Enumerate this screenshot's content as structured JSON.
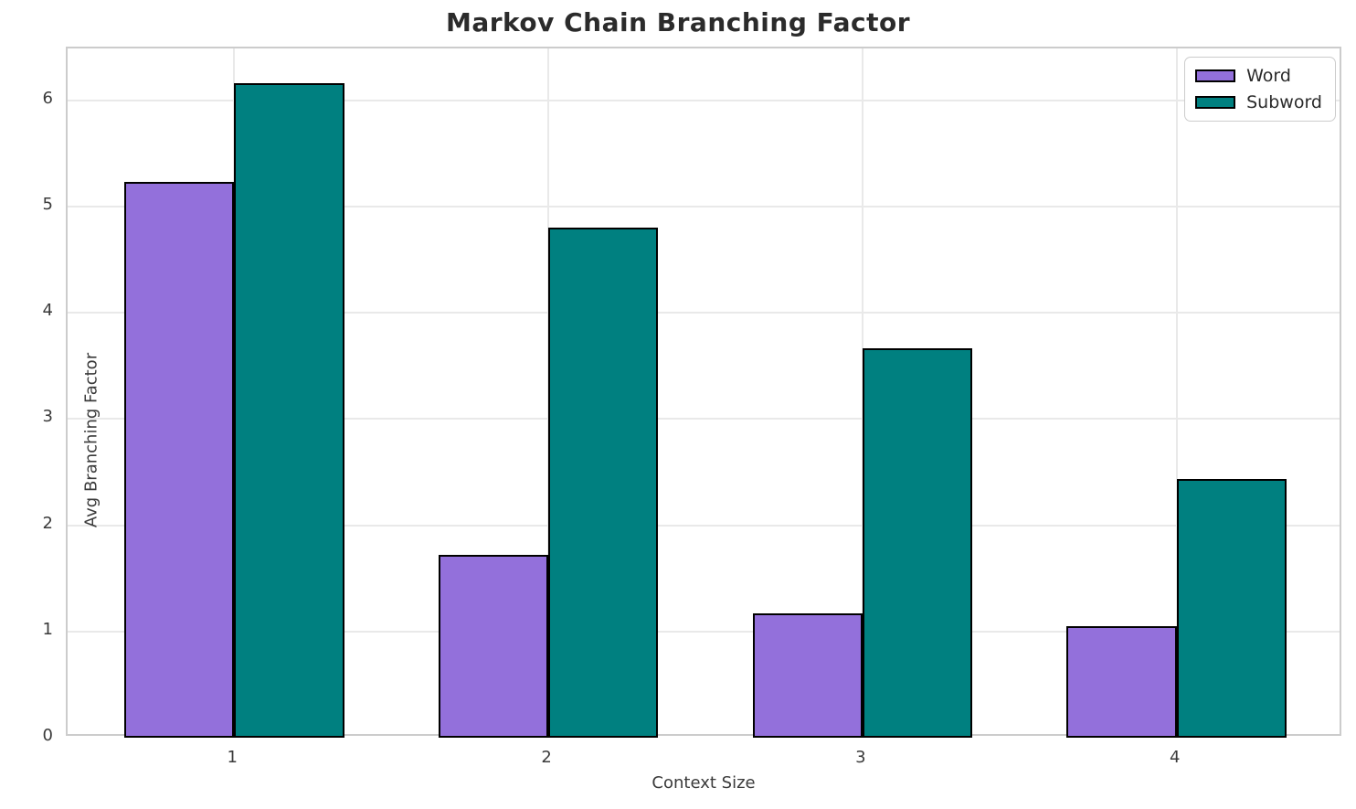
{
  "chart_data": {
    "type": "bar",
    "title": "Markov Chain Branching Factor",
    "xlabel": "Context Size",
    "ylabel": "Avg Branching Factor",
    "categories": [
      "1",
      "2",
      "3",
      "4"
    ],
    "series": [
      {
        "name": "Word",
        "color": "#9370DB",
        "values": [
          5.23,
          1.72,
          1.17,
          1.05
        ]
      },
      {
        "name": "Subword",
        "color": "#008080",
        "values": [
          6.16,
          4.8,
          3.67,
          2.44
        ]
      }
    ],
    "ylim": [
      0,
      6.49
    ],
    "yticks": [
      0,
      1,
      2,
      3,
      4,
      5,
      6
    ],
    "xlim": [
      -0.53,
      3.53
    ],
    "bar_width_units": 0.35,
    "bar_edge_color": "#000000",
    "grid": true,
    "gridline_color": "#e9e9e9",
    "spine_color": "#cccccc",
    "title_color": "#2b2b2b",
    "tick_label_color": "#3a3a3a",
    "legend_position": "upper right",
    "legend_entries": [
      "Word",
      "Subword"
    ]
  }
}
